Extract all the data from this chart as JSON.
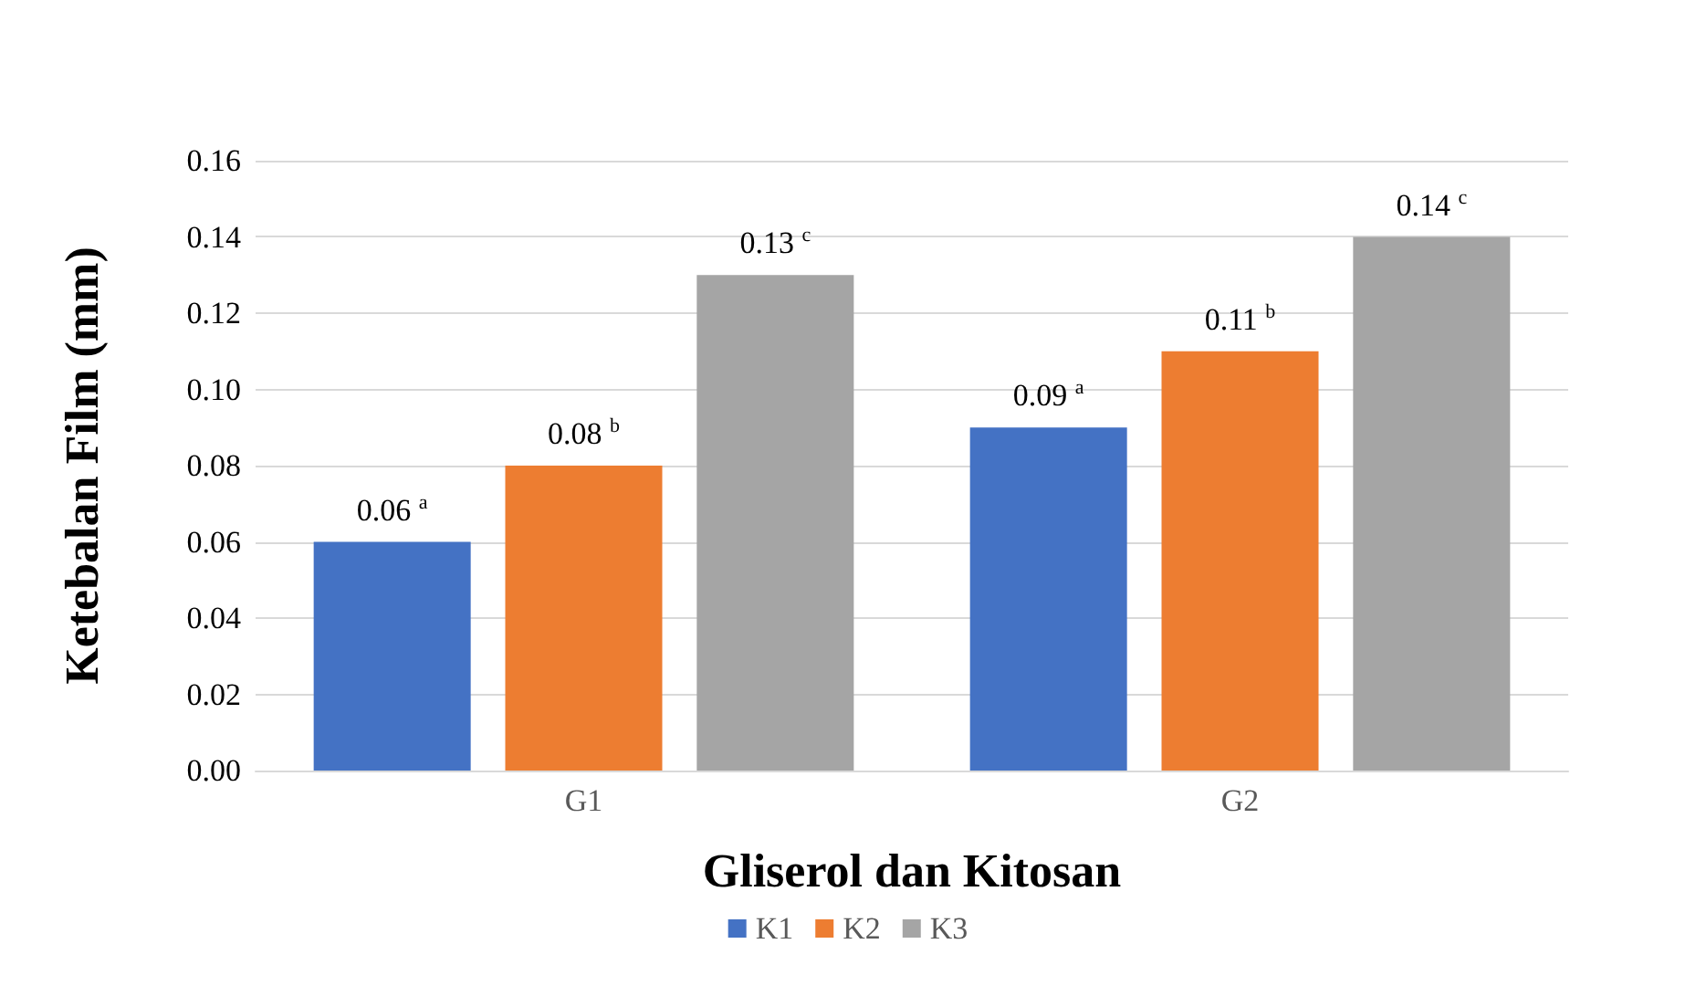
{
  "chart_data": {
    "type": "bar",
    "xlabel": "Gliserol dan Kitosan",
    "ylabel": "Ketebalan Film (mm)",
    "categories": [
      "G1",
      "G2"
    ],
    "series": [
      {
        "name": "K1",
        "color": "#4472c4",
        "values": [
          0.06,
          0.09
        ],
        "value_labels": [
          "0.06$^{a}$",
          "0.09$^{a}$"
        ]
      },
      {
        "name": "K2",
        "color": "#ed7d31",
        "values": [
          0.08,
          0.11
        ],
        "value_labels": [
          "0.08$^{b}$",
          "0.11$^{b}$"
        ]
      },
      {
        "name": "K3",
        "color": "#a5a5a5",
        "values": [
          0.13,
          0.14
        ],
        "value_labels": [
          "0.13$^{c}$",
          "0.14$^{c}$"
        ]
      }
    ],
    "ylim": [
      0,
      0.16
    ],
    "yticks": [
      {
        "value": 0,
        "label": "0.00"
      },
      0.02,
      0.04,
      0.06,
      0.08,
      {
        "value": 0.1,
        "label": "0.10"
      },
      0.12,
      0.14,
      0.16
    ],
    "grid": "y",
    "legend": "bottom"
  }
}
